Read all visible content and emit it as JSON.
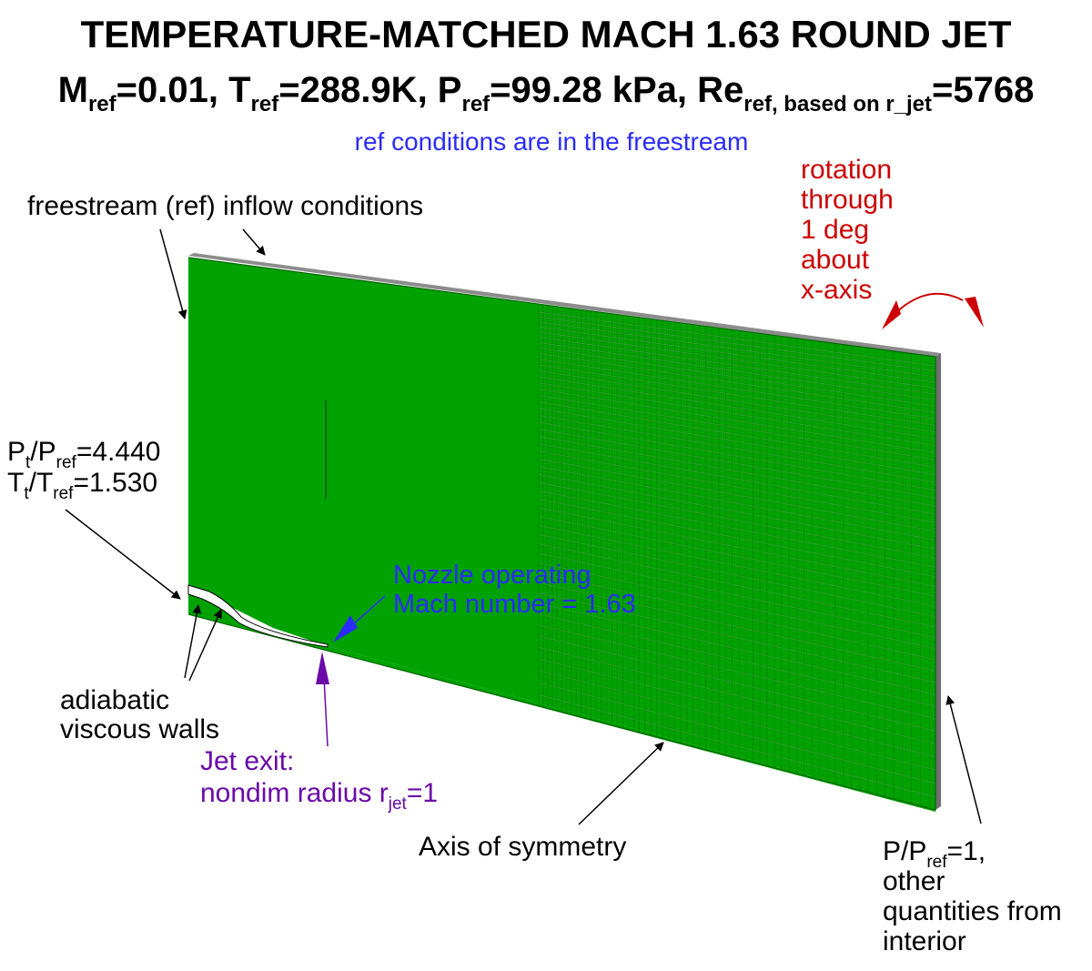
{
  "title": "TEMPERATURE-MATCHED MACH 1.63 ROUND JET",
  "ref_line": {
    "m": "M",
    "m_sub": "ref",
    "m_val": "=0.01, ",
    "t": "T",
    "t_sub": "ref",
    "t_val": "=288.9K, ",
    "p": "P",
    "p_sub": "ref",
    "p_val": "=99.28 kPa, ",
    "re": "Re",
    "re_sub": "ref, based on r_jet",
    "re_val": "=5768"
  },
  "ref_note": "ref conditions are in the freestream",
  "labels": {
    "freestream": "freestream (ref) inflow conditions",
    "rotation": [
      "rotation",
      "through",
      "1 deg",
      "about",
      "x-axis"
    ],
    "pt_a": "P",
    "pt_sub": "t",
    "pt_b": "/P",
    "pt_sub2": "ref",
    "pt_val": "=4.440",
    "tt_a": "T",
    "tt_sub": "t",
    "tt_b": "/T",
    "tt_sub2": "ref",
    "tt_val": "=1.530",
    "nozzle": [
      "Nozzle operating",
      "Mach number = 1.63"
    ],
    "walls": [
      "adiabatic",
      "viscous walls"
    ],
    "jet_exit_1": "Jet exit:",
    "jet_exit_2": "nondim radius r",
    "jet_exit_sub": "jet",
    "jet_exit_val": "=1",
    "axis": "Axis of symmetry",
    "outflow_a": "P/P",
    "outflow_sub": "ref",
    "outflow_val": "=1,",
    "outflow_rest": [
      "other",
      "quantities from",
      "interior"
    ]
  },
  "colors": {
    "mesh_fill": "#00a200",
    "mesh_line": "#007a00",
    "mesh_edge": "#8c8c8c",
    "blue_text": "#2b2bff",
    "red_text": "#cc0000",
    "purple_text": "#6a0aa8"
  }
}
